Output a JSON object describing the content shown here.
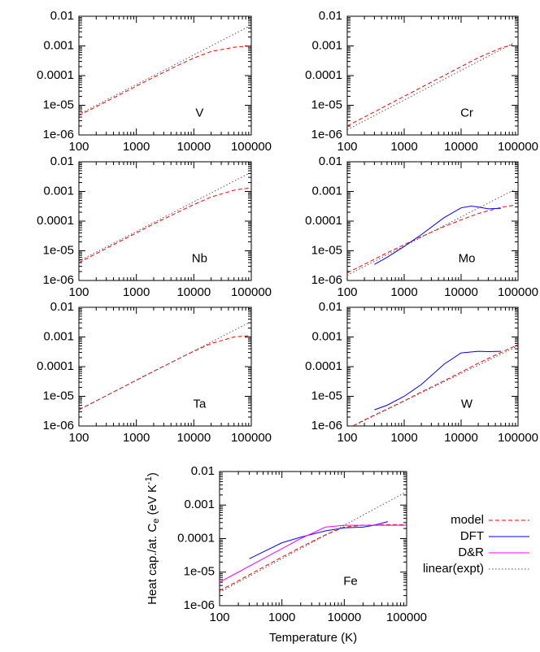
{
  "chart_data": [
    {
      "type": "line",
      "label": "V",
      "log_x": true,
      "log_y": true,
      "xlim": [
        100,
        100000
      ],
      "ylim": [
        1e-06,
        0.01
      ],
      "xticks": [
        100,
        1000,
        10000,
        100000
      ],
      "yticks": [
        {
          "value": 1e-06,
          "label": "1e-06"
        },
        {
          "value": 1e-05,
          "label": "1e-05"
        },
        0.0001,
        0.001,
        0.01
      ],
      "series": [
        {
          "color": "#ff0000",
          "dash": "dashed",
          "x": [
            100,
            200,
            500,
            1000,
            2000,
            5000,
            10000,
            20000,
            50000,
            100000
          ],
          "values": [
            4.5e-06,
            9e-06,
            2.2e-05,
            4.4e-05,
            8.7e-05,
            0.00021,
            0.00039,
            0.00065,
            0.0009,
            0.001
          ]
        },
        {
          "color": "#555555",
          "dash": "dotted",
          "x": [
            100,
            100000
          ],
          "values": [
            5e-06,
            0.005
          ]
        }
      ]
    },
    {
      "type": "line",
      "label": "Cr",
      "log_x": true,
      "log_y": true,
      "xlim": [
        100,
        100000
      ],
      "ylim": [
        1e-06,
        0.01
      ],
      "xticks": [
        100,
        1000,
        10000,
        100000
      ],
      "yticks": [
        {
          "value": 1e-06,
          "label": "1e-06"
        },
        {
          "value": 1e-05,
          "label": "1e-05"
        },
        0.0001,
        0.001,
        0.01
      ],
      "series": [
        {
          "color": "#ff0000",
          "dash": "dashed",
          "x": [
            100,
            200,
            500,
            1000,
            2000,
            5000,
            10000,
            20000,
            50000,
            80000
          ],
          "values": [
            2e-06,
            4e-06,
            1e-05,
            2e-05,
            4e-05,
            0.0001,
            0.0002,
            0.0004,
            0.00085,
            0.0011
          ]
        },
        {
          "color": "#555555",
          "dash": "dotted",
          "x": [
            100,
            80000
          ],
          "values": [
            1.5e-06,
            0.0012
          ]
        }
      ]
    },
    {
      "type": "line",
      "label": "Nb",
      "log_x": true,
      "log_y": true,
      "xlim": [
        100,
        100000
      ],
      "ylim": [
        1e-06,
        0.01
      ],
      "xticks": [
        100,
        1000,
        10000,
        100000
      ],
      "yticks": [
        {
          "value": 1e-06,
          "label": "1e-06"
        },
        {
          "value": 1e-05,
          "label": "1e-05"
        },
        0.0001,
        0.001,
        0.01
      ],
      "series": [
        {
          "color": "#ff0000",
          "dash": "dashed",
          "x": [
            100,
            200,
            500,
            1000,
            2000,
            5000,
            10000,
            20000,
            50000,
            90000
          ],
          "values": [
            4e-06,
            8e-06,
            2e-05,
            4e-05,
            8e-05,
            0.00019,
            0.00036,
            0.00065,
            0.0011,
            0.0013
          ]
        },
        {
          "color": "#555555",
          "dash": "dotted",
          "x": [
            100,
            90000
          ],
          "values": [
            4.5e-06,
            0.004
          ]
        }
      ]
    },
    {
      "type": "line",
      "label": "Mo",
      "log_x": true,
      "log_y": true,
      "xlim": [
        100,
        100000
      ],
      "ylim": [
        1e-06,
        0.01
      ],
      "xticks": [
        100,
        1000,
        10000,
        100000
      ],
      "yticks": [
        {
          "value": 1e-06,
          "label": "1e-06"
        },
        {
          "value": 1e-05,
          "label": "1e-05"
        },
        0.0001,
        0.001,
        0.01
      ],
      "series": [
        {
          "color": "#ff0000",
          "dash": "dashed",
          "x": [
            100,
            200,
            500,
            1000,
            2000,
            5000,
            10000,
            20000,
            50000,
            90000
          ],
          "values": [
            1.8e-06,
            3.5e-06,
            8.5e-06,
            1.6e-05,
            3e-05,
            6.5e-05,
            0.00011,
            0.00018,
            0.00029,
            0.00035
          ]
        },
        {
          "color": "#0000ff",
          "dash": "solid",
          "x": [
            300,
            500,
            1000,
            2000,
            5000,
            10000,
            15000,
            20000,
            30000,
            50000
          ],
          "values": [
            3.5e-06,
            6e-06,
            1.4e-05,
            3.5e-05,
            0.00013,
            0.00028,
            0.00032,
            0.0003,
            0.00026,
            0.00027
          ]
        },
        {
          "color": "#555555",
          "dash": "dotted",
          "x": [
            100,
            90000
          ],
          "values": [
            1.5e-06,
            0.0012
          ]
        }
      ]
    },
    {
      "type": "line",
      "label": "Ta",
      "log_x": true,
      "log_y": true,
      "xlim": [
        100,
        100000
      ],
      "ylim": [
        1e-06,
        0.01
      ],
      "xticks": [
        100,
        1000,
        10000,
        100000
      ],
      "yticks": [
        {
          "value": 1e-06,
          "label": "1e-06"
        },
        {
          "value": 1e-05,
          "label": "1e-05"
        },
        0.0001,
        0.001,
        0.01
      ],
      "series": [
        {
          "color": "#ff0000",
          "dash": "dashed",
          "x": [
            100,
            200,
            500,
            1000,
            2000,
            5000,
            10000,
            20000,
            50000,
            90000
          ],
          "values": [
            3.5e-06,
            7e-06,
            1.75e-05,
            3.5e-05,
            7e-05,
            0.00017,
            0.00033,
            0.0006,
            0.001,
            0.0011
          ]
        },
        {
          "color": "#555555",
          "dash": "dotted",
          "x": [
            100,
            90000
          ],
          "values": [
            3.5e-06,
            0.003
          ]
        }
      ]
    },
    {
      "type": "line",
      "label": "W",
      "log_x": true,
      "log_y": true,
      "xlim": [
        100,
        100000
      ],
      "ylim": [
        1e-06,
        0.01
      ],
      "xticks": [
        100,
        1000,
        10000,
        100000
      ],
      "yticks": [
        {
          "value": 1e-06,
          "label": "1e-06"
        },
        {
          "value": 1e-05,
          "label": "1e-05"
        },
        0.0001,
        0.001,
        0.01
      ],
      "series": [
        {
          "color": "#ff0000",
          "dash": "dashed",
          "x": [
            100,
            200,
            500,
            1000,
            2000,
            5000,
            10000,
            20000,
            50000,
            100000
          ],
          "values": [
            8e-07,
            1.6e-06,
            3.7e-06,
            7e-06,
            1.4e-05,
            3.3e-05,
            6.5e-05,
            0.00013,
            0.0003,
            0.00055
          ]
        },
        {
          "color": "#0000ff",
          "dash": "solid",
          "x": [
            300,
            500,
            1000,
            2000,
            5000,
            10000,
            20000,
            30000,
            50000
          ],
          "values": [
            3.5e-06,
            5e-06,
            1e-05,
            2.5e-05,
            0.00012,
            0.00029,
            0.00033,
            0.00032,
            0.00033
          ]
        },
        {
          "color": "#555555",
          "dash": "dotted",
          "x": [
            100,
            100000
          ],
          "values": [
            8e-07,
            0.0005
          ]
        }
      ]
    },
    {
      "type": "line",
      "label": "Fe",
      "log_x": true,
      "log_y": true,
      "xlabel": "Temperature (K)",
      "ylabel": {
        "main": "Heat cap./at. C",
        "sub": "e",
        "mid": " (eV K",
        "sup": "-1",
        "end": ")"
      },
      "legend": "outside-right",
      "xlim": [
        100,
        100000
      ],
      "ylim": [
        1e-06,
        0.01
      ],
      "xticks": [
        100,
        1000,
        10000,
        100000
      ],
      "yticks": [
        {
          "value": 1e-06,
          "label": "1e-06"
        },
        {
          "value": 1e-05,
          "label": "1e-05"
        },
        0.0001,
        0.001,
        0.01
      ],
      "series": [
        {
          "name": "model",
          "color": "#ff0000",
          "dash": "dashed",
          "x": [
            100,
            200,
            500,
            1000,
            2000,
            5000,
            10000,
            20000,
            50000,
            100000
          ],
          "values": [
            2.8e-06,
            5.5e-06,
            1.4e-05,
            2.8e-05,
            5.5e-05,
            0.00013,
            0.00022,
            0.00025,
            0.00026,
            0.00026
          ]
        },
        {
          "name": "DFT",
          "color": "#0000ff",
          "dash": "solid",
          "x": [
            300,
            500,
            1000,
            2000,
            5000,
            10000,
            20000,
            30000,
            50000
          ],
          "values": [
            2.5e-05,
            4e-05,
            7.5e-05,
            0.00011,
            0.00017,
            0.00021,
            0.00022,
            0.00025,
            0.00032
          ]
        },
        {
          "name": "D&R",
          "color": "#ff00ff",
          "dash": "solid",
          "x": [
            100,
            200,
            500,
            1000,
            2000,
            5000,
            10000,
            20000,
            50000,
            100000
          ],
          "values": [
            5e-06,
            1e-05,
            2.5e-05,
            5e-05,
            0.0001,
            0.00022,
            0.00025,
            0.00025,
            0.00025,
            0.00025
          ]
        },
        {
          "name": "linear(expt)",
          "color": "#555555",
          "dash": "dotted",
          "x": [
            100,
            100000
          ],
          "values": [
            2.5e-06,
            0.0025
          ]
        }
      ]
    }
  ]
}
